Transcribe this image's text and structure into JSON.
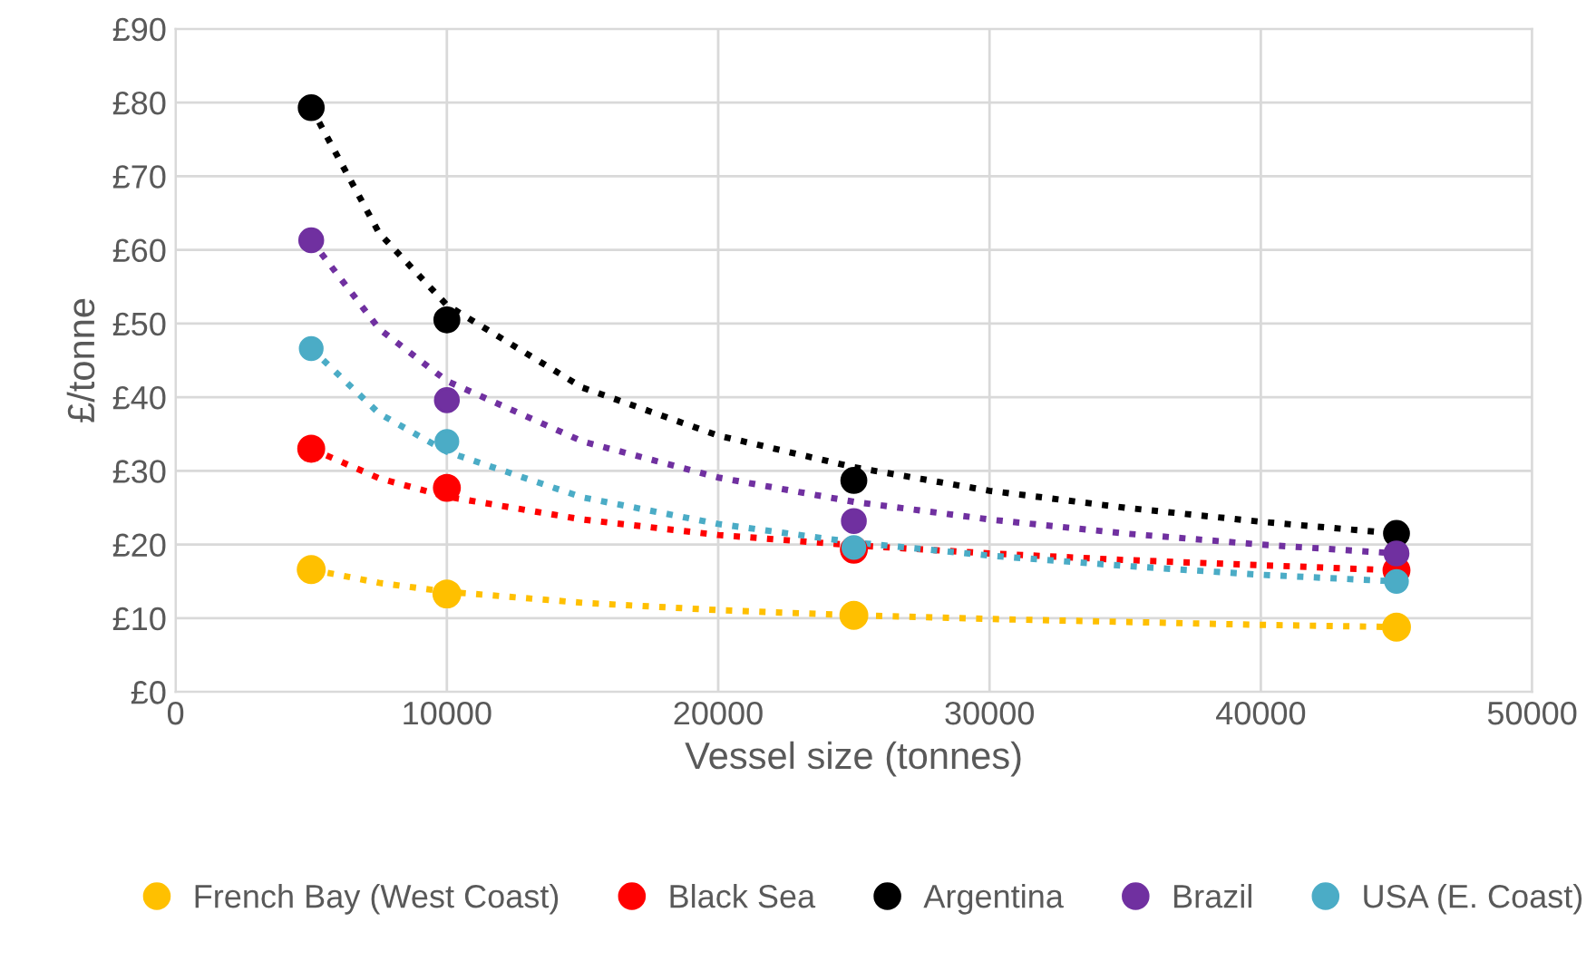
{
  "chart_data": {
    "type": "scatter",
    "xlabel": "Vessel size (tonnes)",
    "ylabel": "£/tonne",
    "x": [
      5000,
      10000,
      25000,
      45000
    ],
    "xlim": [
      0,
      50000
    ],
    "xticks": [
      0,
      10000,
      20000,
      30000,
      40000,
      50000
    ],
    "ylim": [
      0,
      90
    ],
    "yticks": [
      {
        "value": 0,
        "label": "£0"
      },
      {
        "value": 10,
        "label": "£10"
      },
      {
        "value": 20,
        "label": "£20"
      },
      {
        "value": 30,
        "label": "£30"
      },
      {
        "value": 40,
        "label": "£40"
      },
      {
        "value": 50,
        "label": "£50"
      },
      {
        "value": 60,
        "label": "£60"
      },
      {
        "value": 70,
        "label": "£70"
      },
      {
        "value": 80,
        "label": "£80"
      },
      {
        "value": 90,
        "label": "£90"
      }
    ],
    "grid": true,
    "legend": "bottom",
    "marker": "circle",
    "series": [
      {
        "type": "line",
        "line_style": "dotted",
        "marker": "none",
        "color": "#ffc000",
        "x": [
          5000,
          7500,
          10000,
          15000,
          20000,
          25000,
          30000,
          35000,
          40000,
          45000
        ],
        "values": [
          16.6,
          14.8,
          13.6,
          12.1,
          11.1,
          10.4,
          9.9,
          9.5,
          9.1,
          8.8
        ]
      },
      {
        "type": "line",
        "line_style": "dotted",
        "marker": "none",
        "color": "#ff0000",
        "x": [
          5000,
          7500,
          10000,
          15000,
          20000,
          25000,
          30000,
          35000,
          40000,
          45000
        ],
        "values": [
          33,
          29.0,
          26.5,
          23.4,
          21.3,
          19.9,
          18.8,
          17.9,
          17.2,
          16.5
        ]
      },
      {
        "type": "line",
        "line_style": "dotted",
        "marker": "none",
        "color": "#000000",
        "x": [
          5000,
          7500,
          10000,
          15000,
          20000,
          25000,
          30000,
          35000,
          40000,
          45000
        ],
        "values": [
          79.3,
          62.3,
          52.5,
          41.3,
          34.8,
          30.5,
          27.3,
          25.0,
          23.1,
          21.5
        ]
      },
      {
        "type": "line",
        "line_style": "dotted",
        "marker": "none",
        "color": "#7030a0",
        "x": [
          5000,
          7500,
          10000,
          15000,
          20000,
          25000,
          30000,
          35000,
          40000,
          45000
        ],
        "values": [
          61.3,
          49.3,
          42.2,
          34.0,
          29.1,
          25.8,
          23.4,
          21.5,
          20.0,
          18.8
        ]
      },
      {
        "type": "line",
        "line_style": "dotted",
        "marker": "none",
        "color": "#4bacc6",
        "x": [
          5000,
          7500,
          10000,
          15000,
          20000,
          25000,
          30000,
          35000,
          40000,
          45000
        ],
        "values": [
          46.6,
          37.8,
          32.6,
          26.4,
          22.8,
          20.3,
          18.5,
          17.1,
          15.9,
          15.0
        ]
      },
      {
        "name": "French Bay (West Coast)",
        "color": "#ffc000",
        "values": [
          16.6,
          13.3,
          10.4,
          8.8
        ]
      },
      {
        "name": "Black Sea",
        "color": "#ff0000",
        "values": [
          33,
          27.7,
          19.3,
          16.5
        ]
      },
      {
        "name": "Argentina",
        "color": "#000000",
        "values": [
          79.3,
          50.5,
          28.7,
          21.5
        ]
      },
      {
        "name": "Brazil",
        "color": "#7030a0",
        "values": [
          61.3,
          39.6,
          23.2,
          18.8
        ]
      },
      {
        "name": "USA (E. Coast)",
        "color": "#4bacc6",
        "values": [
          46.6,
          34,
          19.6,
          15
        ]
      }
    ]
  }
}
